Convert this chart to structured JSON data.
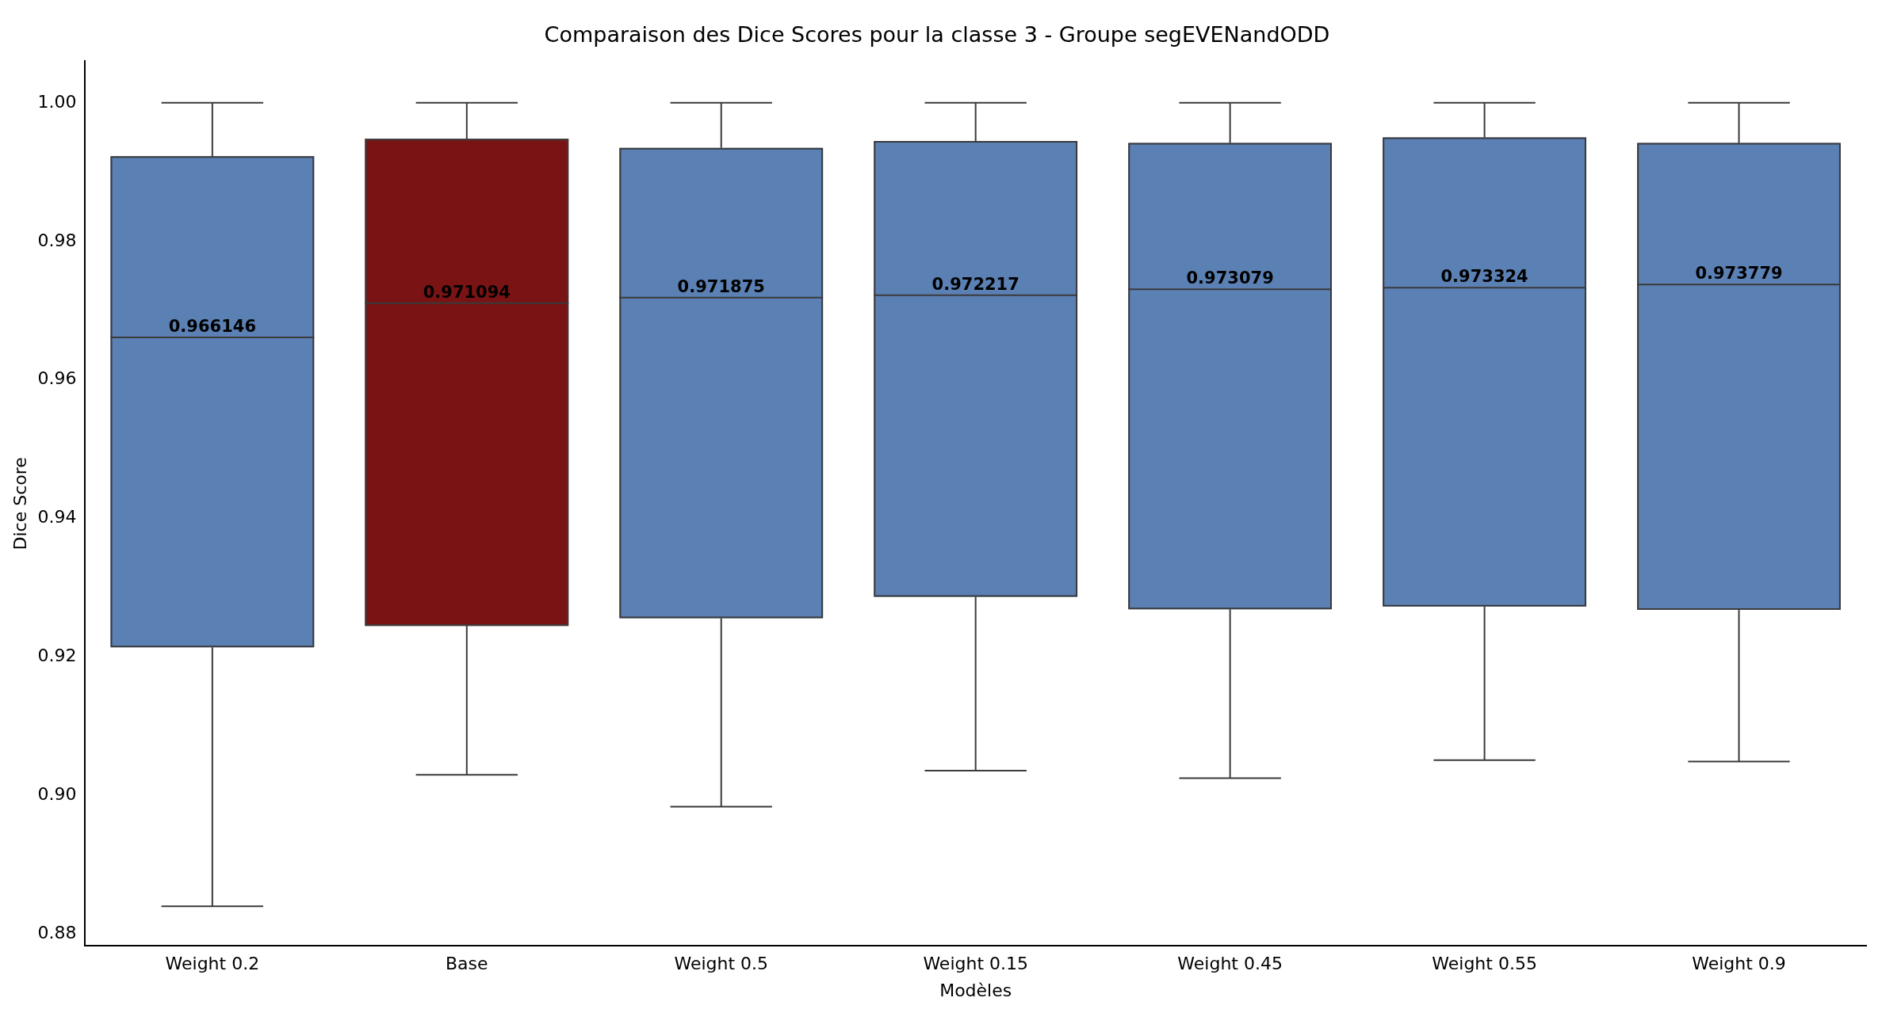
{
  "chart_data": {
    "type": "box",
    "title": "Comparaison des Dice Scores pour la classe 3 - Groupe segEVENandODD",
    "xlabel": "Modèles",
    "ylabel": "Dice Score",
    "categories": [
      "Weight 0.2",
      "Base",
      "Weight 0.5",
      "Weight 0.15",
      "Weight 0.45",
      "Weight 0.55",
      "Weight 0.9"
    ],
    "colors": [
      "#5b80b4",
      "#7a1414",
      "#5b80b4",
      "#5b80b4",
      "#5b80b4",
      "#5b80b4",
      "#5b80b4"
    ],
    "boxes": [
      {
        "low": 0.884,
        "q1": 0.9214,
        "median": 0.966146,
        "q3": 0.9923,
        "high": 1.0
      },
      {
        "low": 0.903,
        "q1": 0.9245,
        "median": 0.971094,
        "q3": 0.9948,
        "high": 1.0
      },
      {
        "low": 0.8984,
        "q1": 0.9256,
        "median": 0.971875,
        "q3": 0.9935,
        "high": 1.0
      },
      {
        "low": 0.9036,
        "q1": 0.9287,
        "median": 0.972217,
        "q3": 0.9945,
        "high": 1.0
      },
      {
        "low": 0.9025,
        "q1": 0.9269,
        "median": 0.973079,
        "q3": 0.9942,
        "high": 1.0
      },
      {
        "low": 0.9051,
        "q1": 0.9273,
        "median": 0.973324,
        "q3": 0.995,
        "high": 1.0
      },
      {
        "low": 0.9049,
        "q1": 0.9268,
        "median": 0.973779,
        "q3": 0.9942,
        "high": 1.0
      }
    ],
    "ylim": [
      0.8783,
      1.006
    ],
    "yticks": [
      {
        "value": 0.88,
        "label": "0.88"
      },
      {
        "value": 0.9,
        "label": "0.90"
      },
      {
        "value": 0.92,
        "label": "0.92"
      },
      {
        "value": 0.94,
        "label": "0.94"
      },
      {
        "value": 0.96,
        "label": "0.96"
      },
      {
        "value": 0.98,
        "label": "0.98"
      },
      {
        "value": 1.0,
        "label": "1.00"
      }
    ],
    "annotations": [
      {
        "text": "0.966146",
        "x": "Weight 0.2",
        "y": 0.966146
      },
      {
        "text": "0.971094",
        "x": "Base",
        "y": 0.971094
      },
      {
        "text": "0.971875",
        "x": "Weight 0.5",
        "y": 0.971875
      },
      {
        "text": "0.972217",
        "x": "Weight 0.15",
        "y": 0.972217
      },
      {
        "text": "0.973079",
        "x": "Weight 0.45",
        "y": 0.973079
      },
      {
        "text": "0.973324",
        "x": "Weight 0.55",
        "y": 0.973324
      },
      {
        "text": "0.973779",
        "x": "Weight 0.9",
        "y": 0.973779
      }
    ],
    "grid": false,
    "legend": false
  }
}
